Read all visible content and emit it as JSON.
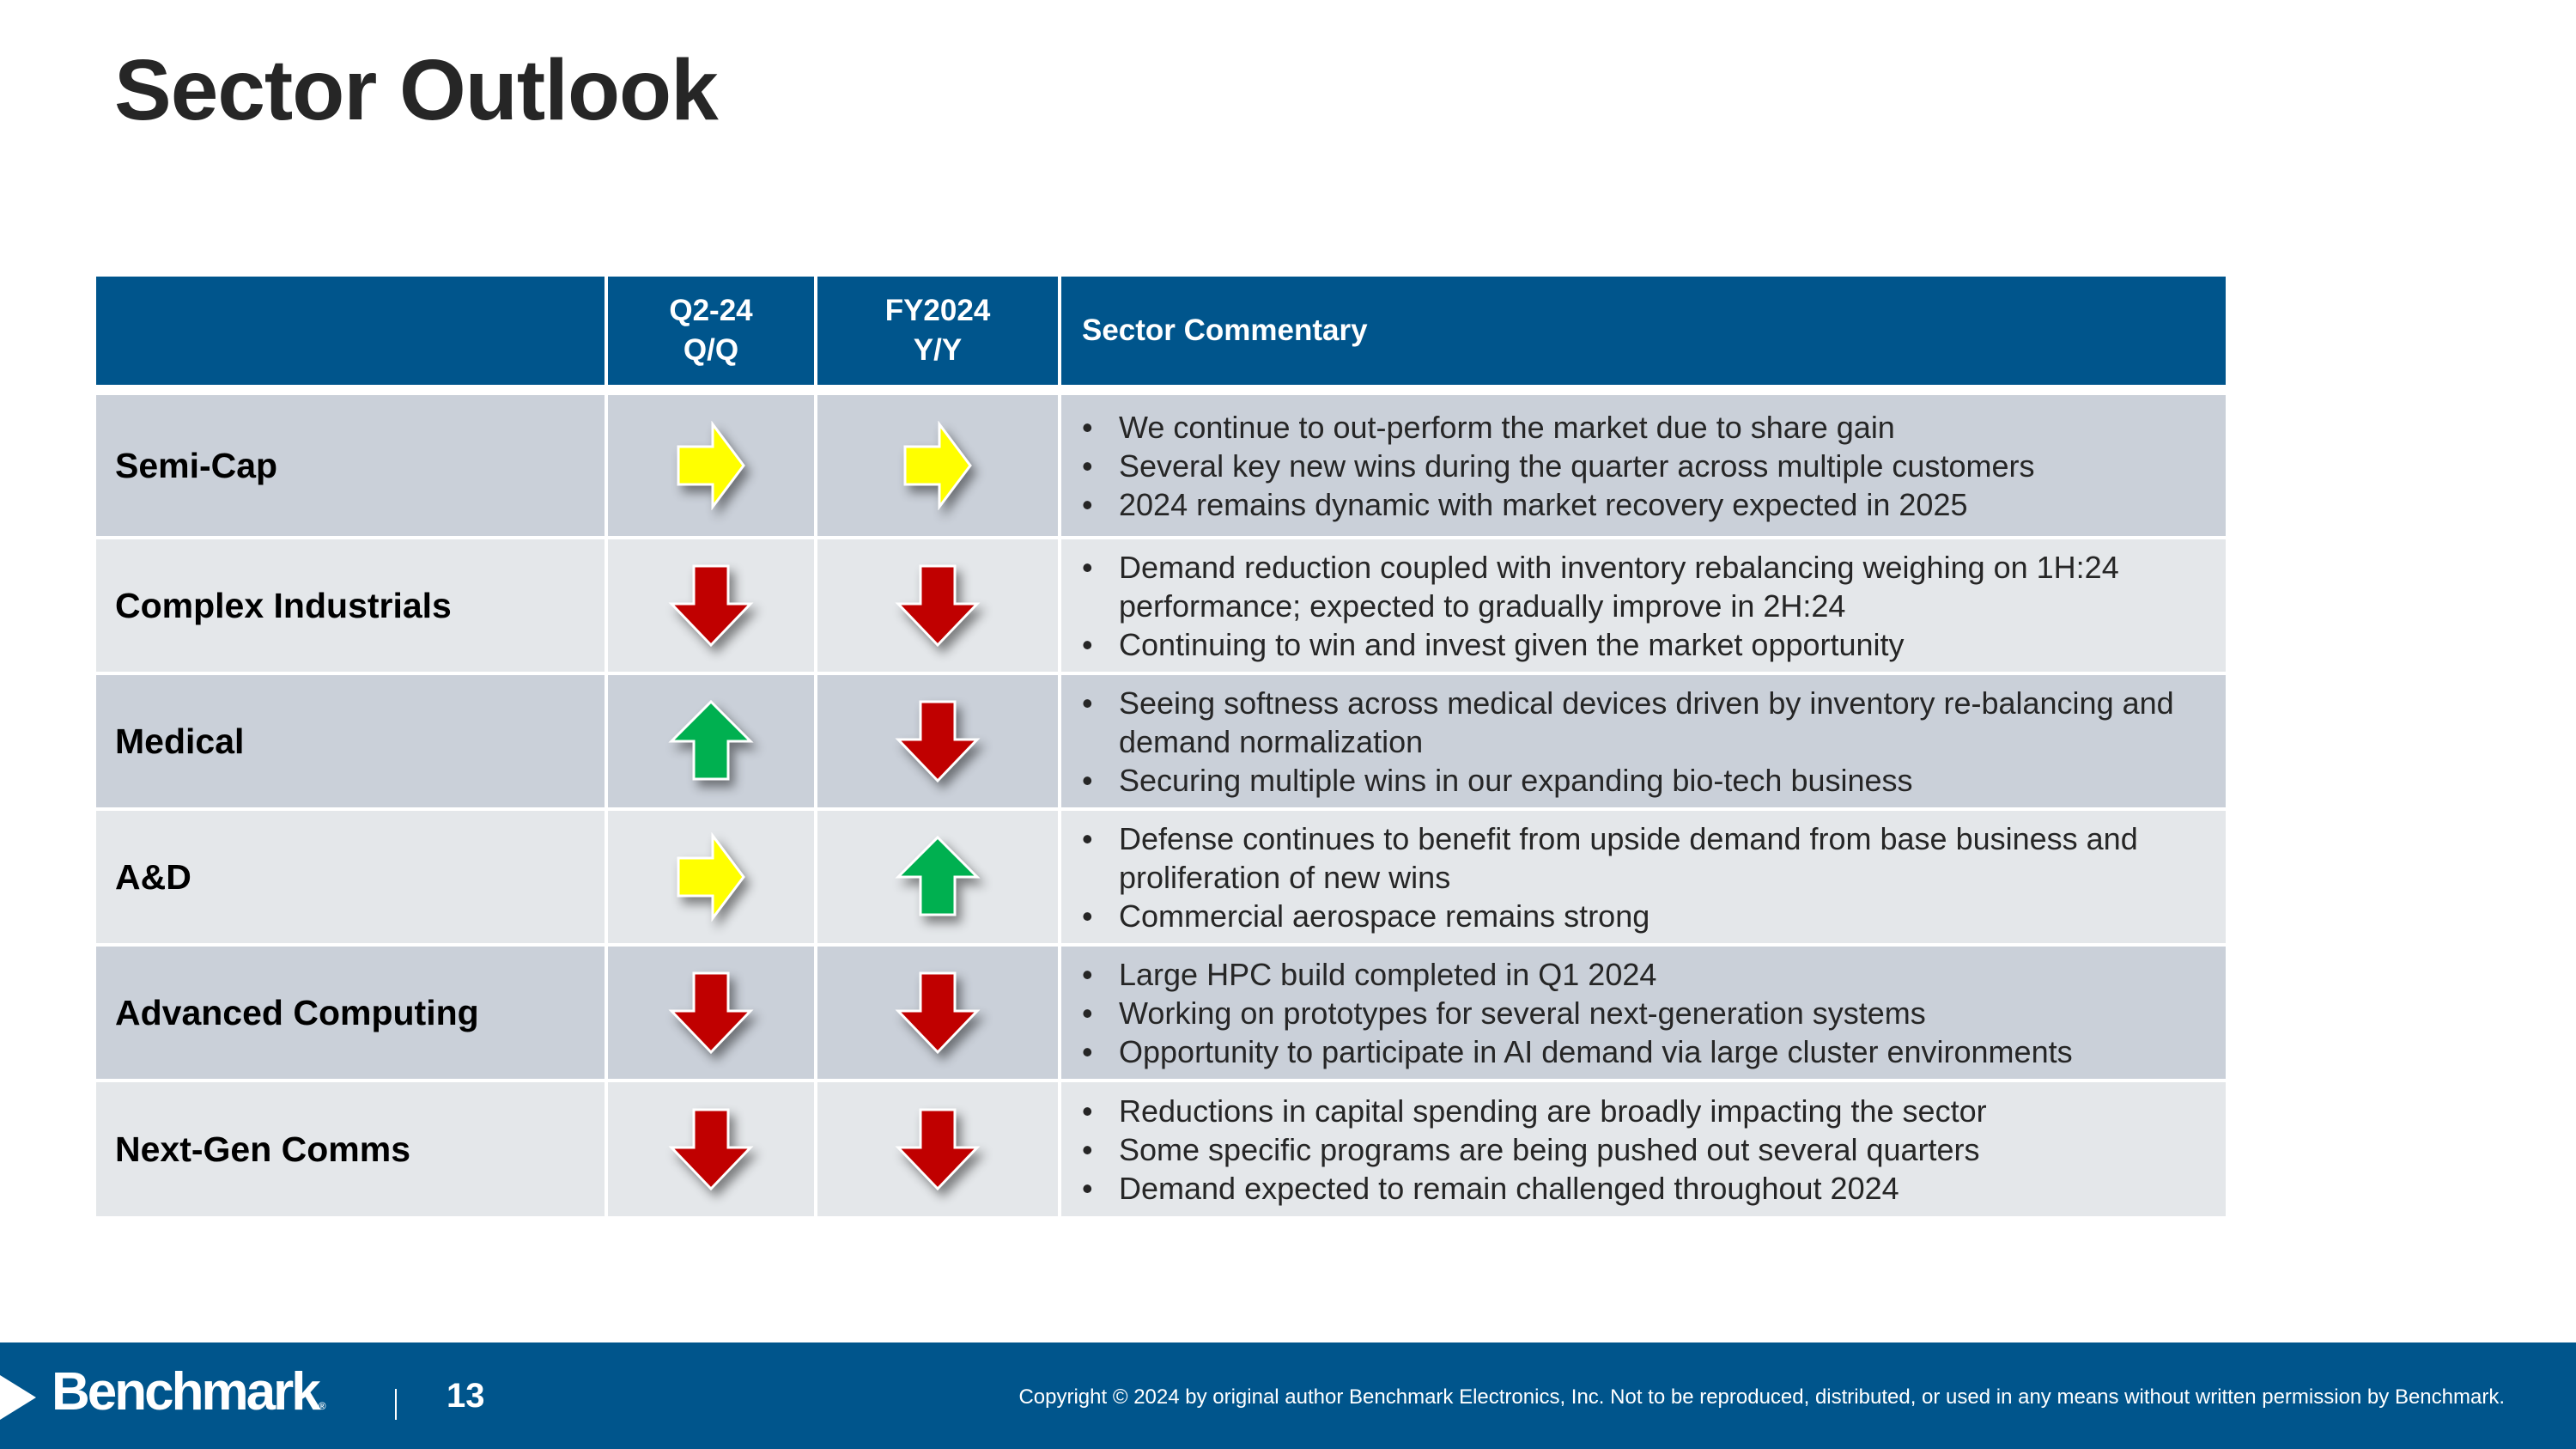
{
  "slide": {
    "title": "Sector Outlook",
    "page_number": "13"
  },
  "colors": {
    "brand_blue": "#00558C",
    "row_dark": "#CAD0D9",
    "row_light": "#E4E7EA",
    "arrow_up": "#00B050",
    "arrow_down": "#C00000",
    "arrow_flat": "#FFFF00"
  },
  "table": {
    "headers": {
      "sector": "",
      "qq_line1": "Q2-24",
      "qq_line2": "Q/Q",
      "yy_line1": "FY2024",
      "yy_line2": "Y/Y",
      "commentary": "Sector Commentary"
    },
    "rows": [
      {
        "sector": "Semi-Cap",
        "qq": "flat",
        "yy": "flat",
        "bullets": [
          "We continue to out-perform the market due to share gain",
          "Several key new wins during the quarter across multiple customers",
          "2024 remains dynamic with market recovery expected in 2025"
        ]
      },
      {
        "sector": "Complex Industrials",
        "qq": "down",
        "yy": "down",
        "bullets": [
          "Demand reduction coupled with inventory rebalancing weighing on 1H:24 performance; expected to gradually improve in 2H:24",
          "Continuing to win and invest given the market opportunity"
        ]
      },
      {
        "sector": "Medical",
        "qq": "up",
        "yy": "down",
        "bullets": [
          "Seeing softness across medical devices driven by inventory re-balancing and demand normalization",
          "Securing multiple wins in our expanding bio-tech business"
        ]
      },
      {
        "sector": "A&D",
        "qq": "flat",
        "yy": "up",
        "bullets": [
          "Defense continues to benefit from upside demand from base business and proliferation of new wins",
          "Commercial aerospace remains strong"
        ]
      },
      {
        "sector": "Advanced Computing",
        "qq": "down",
        "yy": "down",
        "bullets": [
          "Large HPC build completed in Q1 2024",
          "Working on prototypes for several next-generation systems",
          "Opportunity to participate in AI demand via large cluster environments"
        ]
      },
      {
        "sector": "Next-Gen Comms",
        "qq": "down",
        "yy": "down",
        "bullets": [
          "Reductions in capital spending are broadly impacting the sector",
          "Some specific programs are being pushed out several quarters",
          "Demand expected to remain challenged throughout 2024"
        ]
      }
    ]
  },
  "footer": {
    "logo_text": "Benchmark",
    "logo_reg": "®",
    "separator": "|",
    "copyright": "Copyright © 2024 by original author Benchmark Electronics, Inc. Not to be reproduced, distributed, or used in any means without written permission by Benchmark."
  }
}
